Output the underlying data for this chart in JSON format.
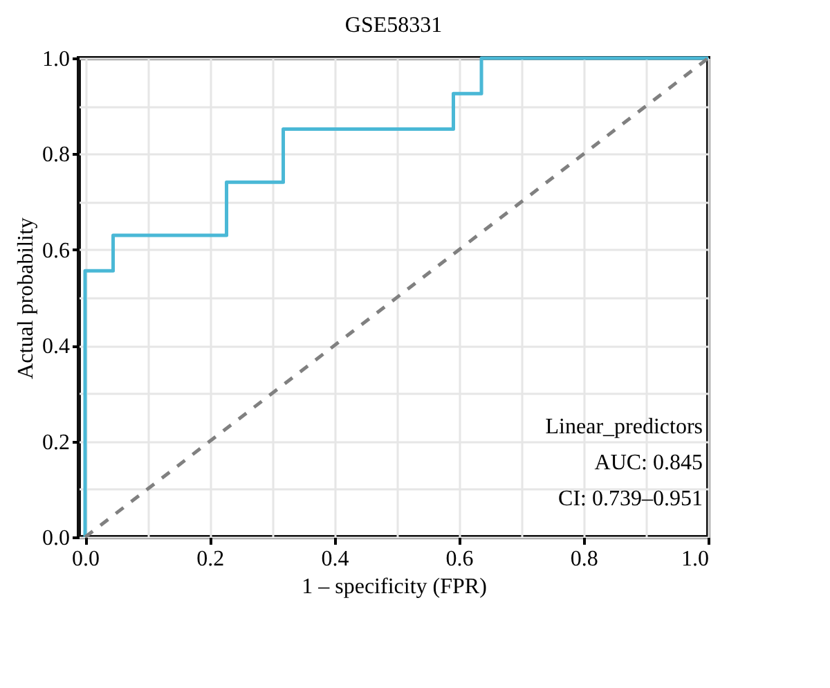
{
  "chart_data": {
    "type": "step",
    "title": "GSE58331",
    "xlabel": "1 – specificity (FPR)",
    "ylabel": "Actual probability",
    "xlim": [
      -0.01,
      1.0
    ],
    "ylim": [
      0,
      1.0
    ],
    "xticks": [
      {
        "value": 0,
        "label": "0.0"
      },
      {
        "value": 0.1,
        "label": null
      },
      0.2,
      {
        "value": 0.3,
        "label": null
      },
      0.4,
      {
        "value": 0.5,
        "label": null
      },
      0.6,
      {
        "value": 0.7,
        "label": null
      },
      0.8,
      {
        "value": 0.9,
        "label": null
      },
      {
        "value": 1.0,
        "label": "1.0"
      }
    ],
    "yticks": [
      {
        "value": 0,
        "label": "0.0"
      },
      {
        "value": 0.1,
        "label": null
      },
      0.2,
      {
        "value": 0.3,
        "label": null
      },
      0.4,
      {
        "value": 0.5,
        "label": null
      },
      0.6,
      {
        "value": 0.7,
        "label": null
      },
      0.8,
      {
        "value": 0.9,
        "label": null
      },
      {
        "value": 1.0,
        "label": "1.0"
      }
    ],
    "grid": true,
    "series": [
      {
        "type": "step",
        "color": "#4ab8d6",
        "line_style": "solid",
        "x": [
          0,
          0,
          0.045,
          0.227,
          0.318,
          0.591,
          0.636,
          1.0
        ],
        "values": [
          0,
          0.556,
          0.63,
          0.741,
          0.852,
          0.926,
          1.0,
          1.0
        ]
      },
      {
        "type": "line",
        "color": "#808080",
        "line_style": "dashed",
        "x": [
          0,
          1.0
        ],
        "values": [
          0,
          1.0
        ]
      }
    ],
    "annotations": [
      "Linear_predictors",
      "AUC: 0.845",
      "CI: 0.739–0.951"
    ]
  }
}
